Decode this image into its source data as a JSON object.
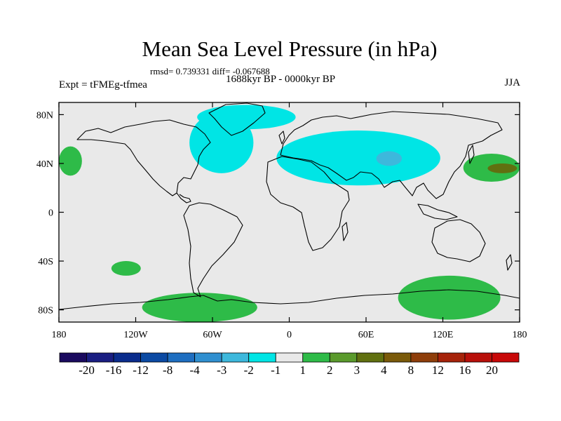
{
  "header": {
    "title": "Mean Sea Level Pressure (in hPa)",
    "stats": "rmsd= 0.739331 diff= -0.067688",
    "period": "1688kyr BP - 0000kyr BP",
    "experiment": "Expt = tFMEg-tfmea",
    "season": "JJA"
  },
  "chart_data": {
    "type": "heatmap",
    "title": "Mean Sea Level Pressure (in hPa)",
    "subtitle": "1688kyr BP - 0000kyr BP",
    "xlabel": "",
    "ylabel": "",
    "xlim": [
      -180,
      180
    ],
    "ylim": [
      -90,
      90
    ],
    "x_ticks": [
      {
        "value": -180,
        "label": "180"
      },
      {
        "value": -120,
        "label": "120W"
      },
      {
        "value": -60,
        "label": "60W"
      },
      {
        "value": 0,
        "label": "0"
      },
      {
        "value": 60,
        "label": "60E"
      },
      {
        "value": 120,
        "label": "120E"
      },
      {
        "value": 180,
        "label": "180"
      }
    ],
    "y_ticks": [
      {
        "value": 80,
        "label": "80N"
      },
      {
        "value": 40,
        "label": "40N"
      },
      {
        "value": 0,
        "label": "0"
      },
      {
        "value": -40,
        "label": "40S"
      },
      {
        "value": -80,
        "label": "80S"
      }
    ],
    "colorbar": {
      "levels": [
        "-20",
        "-16",
        "-12",
        "-8",
        "-4",
        "-3",
        "-2",
        "-1",
        "1",
        "2",
        "3",
        "4",
        "8",
        "12",
        "16",
        "20"
      ],
      "colors": [
        "#1a0a5e",
        "#1a1e82",
        "#0a2c8c",
        "#0b4aa3",
        "#1e6ec0",
        "#2f8fd0",
        "#3db8dc",
        "#00e5e5",
        "#e9e9e9",
        "#2ebb48",
        "#5a9a2c",
        "#607010",
        "#7a5a0a",
        "#8e3e0a",
        "#a6230a",
        "#b8100a",
        "#c80808"
      ]
    },
    "anomalies": [
      {
        "name": "north-atlantic-negative",
        "class": "-2 to -1",
        "lon_range": [
          -78,
          -28
        ],
        "lat_range": [
          32,
          82
        ]
      },
      {
        "name": "eurasia-negative",
        "class": "-2 to -1",
        "lon_range": [
          -10,
          118
        ],
        "lat_range": [
          22,
          67
        ]
      },
      {
        "name": "central-asia-negative-core",
        "class": "-3 to -2",
        "lon_range": [
          68,
          88
        ],
        "lat_range": [
          38,
          50
        ]
      },
      {
        "name": "arctic-negative",
        "class": "-2 to -1",
        "lon_range": [
          -72,
          5
        ],
        "lat_range": [
          68,
          88
        ]
      },
      {
        "name": "north-pacific-west-positive",
        "class": "1 to 2",
        "lon_range": [
          -180,
          -162
        ],
        "lat_range": [
          30,
          54
        ]
      },
      {
        "name": "north-pacific-east-positive",
        "class": "1 to 2",
        "lon_range": [
          136,
          180
        ],
        "lat_range": [
          25,
          48
        ]
      },
      {
        "name": "north-pacific-positive-core",
        "class": "3 to 4",
        "lon_range": [
          155,
          178
        ],
        "lat_range": [
          32,
          40
        ]
      },
      {
        "name": "south-pacific-positive",
        "class": "1 to 2",
        "lon_range": [
          -139,
          -116
        ],
        "lat_range": [
          -52,
          -40
        ]
      },
      {
        "name": "west-antarctica-positive",
        "class": "1 to 2",
        "lon_range": [
          -115,
          -25
        ],
        "lat_range": [
          -90,
          -66
        ]
      },
      {
        "name": "east-antarctica-positive",
        "class": "1 to 2",
        "lon_range": [
          85,
          165
        ],
        "lat_range": [
          -88,
          -52
        ]
      }
    ]
  }
}
